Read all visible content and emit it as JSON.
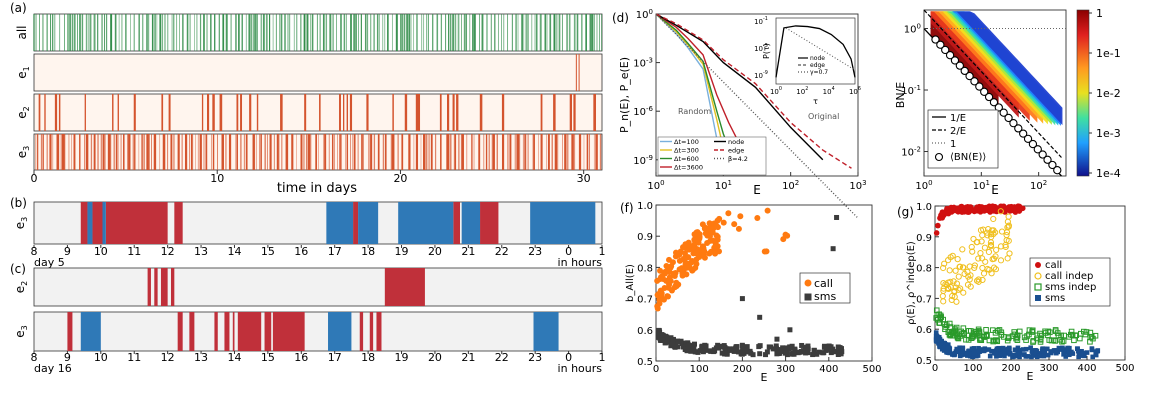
{
  "panel_labels": {
    "a": "(a)",
    "b": "(b)",
    "c": "(c)",
    "d": "(d)",
    "f": "(f)",
    "g": "(g)"
  },
  "colors": {
    "all": "#2e8b46",
    "event": "#d4542e",
    "bg_light": "#fff5ee",
    "call": "#c0303a",
    "sms": "#2f79b7",
    "gray_bg": "#f2f2f2"
  },
  "chart_data": [
    {
      "id": "a",
      "type": "heatmap",
      "row_labels": [
        "all",
        "e1",
        "e2",
        "e3"
      ],
      "xlabel": "time in days",
      "xticks": [
        0,
        10,
        20,
        30
      ],
      "xlim": [
        0,
        31
      ],
      "events": {
        "e1": [
          29.6,
          29.75
        ],
        "e2": [
          0.3,
          0.6,
          1.2,
          1.4,
          2.8,
          4.3,
          4.6,
          5.5,
          7.0,
          7.4,
          9.2,
          9.5,
          9.8,
          10.2,
          11.1,
          11.3,
          11.8,
          12.2,
          13.5,
          14.8,
          15.6,
          16.7,
          16.9,
          17.1,
          17.3,
          18.2,
          19.6,
          20.3,
          20.9,
          21.0,
          22.2,
          22.6,
          22.9,
          23.1,
          24.4,
          25.6,
          27.7,
          28.4,
          29.3,
          29.5,
          30.6
        ],
        "e3": [
          0.2,
          0.5,
          0.9,
          1.3,
          1.6,
          2.2,
          2.5,
          2.9,
          3.3,
          3.8,
          4.1,
          4.5,
          4.9,
          5.2,
          5.5,
          5.9,
          6.2,
          6.6,
          7.1,
          7.5,
          7.9,
          8.3,
          8.6,
          9.1,
          9.4,
          9.8,
          10.3,
          10.7,
          11.1,
          11.6,
          12.0,
          12.4,
          12.9,
          13.3,
          13.8,
          14.1,
          14.6,
          15.0,
          15.4,
          15.9,
          16.3,
          16.7,
          17.1,
          17.5,
          17.9,
          18.4,
          18.8,
          19.2,
          19.6,
          20.1,
          20.5,
          20.9,
          21.3,
          21.7,
          22.2,
          22.6,
          23.0,
          23.4,
          23.9,
          24.3,
          24.7,
          25.1,
          25.6,
          26.0,
          26.4,
          26.8,
          27.3,
          27.7,
          28.1,
          28.5,
          29.0,
          29.4,
          29.8,
          30.2,
          30.7
        ]
      }
    },
    {
      "id": "b",
      "type": "heatmap",
      "row_labels": [
        "e3"
      ],
      "xticks": [
        "8",
        "9",
        "10",
        "11",
        "12",
        "13",
        "14",
        "15",
        "16",
        "17",
        "18",
        "19",
        "20",
        "21",
        "22",
        "23",
        "0",
        "1"
      ],
      "day_label": "day 5",
      "unit_label": "in hours",
      "xlim": [
        8,
        25
      ],
      "call_intervals": [
        [
          9.4,
          9.6
        ],
        [
          9.75,
          10.05
        ],
        [
          10.15,
          12.0
        ],
        [
          12.2,
          12.45
        ],
        [
          17.55,
          17.7
        ],
        [
          20.55,
          20.75
        ],
        [
          21.35,
          21.9
        ]
      ],
      "sms_intervals": [
        [
          9.6,
          9.75
        ],
        [
          10.05,
          10.15
        ],
        [
          16.75,
          17.55
        ],
        [
          17.7,
          18.3
        ],
        [
          18.9,
          20.55
        ],
        [
          20.8,
          21.35
        ],
        [
          22.85,
          24.8
        ]
      ]
    },
    {
      "id": "c",
      "type": "heatmap",
      "row_labels": [
        "e2",
        "e3"
      ],
      "xticks": [
        "8",
        "9",
        "10",
        "11",
        "12",
        "13",
        "14",
        "15",
        "16",
        "17",
        "18",
        "19",
        "20",
        "21",
        "22",
        "23",
        "0",
        "1"
      ],
      "day_label": "day 16",
      "unit_label": "in hours",
      "xlim": [
        8,
        25
      ],
      "e2_call_intervals": [
        [
          11.4,
          11.5
        ],
        [
          11.6,
          11.7
        ],
        [
          11.8,
          12.0
        ],
        [
          12.1,
          12.2
        ],
        [
          18.5,
          19.7
        ]
      ],
      "e3_call_intervals": [
        [
          9.0,
          9.15
        ],
        [
          12.3,
          12.45
        ],
        [
          12.65,
          12.8
        ],
        [
          13.4,
          13.5
        ],
        [
          13.7,
          13.85
        ],
        [
          13.95,
          14.0
        ],
        [
          14.1,
          14.8
        ],
        [
          14.9,
          15.1
        ],
        [
          15.15,
          16.1
        ],
        [
          17.75,
          17.85
        ],
        [
          18.05,
          18.15
        ],
        [
          18.25,
          18.4
        ]
      ],
      "e3_sms_intervals": [
        [
          9.4,
          10.0
        ],
        [
          16.8,
          17.5
        ],
        [
          22.95,
          23.7
        ]
      ]
    },
    {
      "id": "d",
      "type": "line",
      "ylabel": "P_n(E), P_e(E)",
      "xlabel": "E",
      "xlog": true,
      "ylog": true,
      "xlim": [
        1,
        1000
      ],
      "ylim": [
        1e-10,
        1
      ],
      "xticks": [
        "10^0",
        "10^1",
        "10^2",
        "10^3"
      ],
      "yticks": [
        "10^0",
        "10^-3",
        "10^-6",
        "10^-9"
      ],
      "annotations": [
        "Random",
        "Original"
      ],
      "legend": [
        "Δt=100",
        "Δt=300",
        "Δt=600",
        "Δt=3600",
        "node",
        "edge",
        "β=4.2"
      ],
      "series": [
        {
          "name": "Δt=100",
          "color": "#7ab0dc",
          "x": [
            1,
            2,
            3,
            5,
            8,
            10
          ],
          "y": [
            1,
            0.06,
            0.008,
            0.0004,
            2e-08,
            5e-10
          ]
        },
        {
          "name": "Δt=300",
          "color": "#e0c020",
          "x": [
            1,
            2,
            3,
            5,
            8,
            10,
            12
          ],
          "y": [
            1,
            0.08,
            0.012,
            0.0008,
            3e-07,
            5e-09,
            5e-10
          ]
        },
        {
          "name": "Δt=600",
          "color": "#2b8a2b",
          "x": [
            1,
            2,
            3,
            5,
            8,
            10,
            15
          ],
          "y": [
            1,
            0.1,
            0.015,
            0.0012,
            1e-06,
            4e-08,
            5e-10
          ]
        },
        {
          "name": "Δt=3600",
          "color": "#c0202a",
          "x": [
            1,
            2,
            3,
            5,
            8,
            12,
            20
          ],
          "y": [
            1,
            0.15,
            0.03,
            0.003,
            1e-05,
            2e-07,
            3e-09
          ]
        },
        {
          "name": "node",
          "color": "#000000",
          "dash": "none",
          "x": [
            1,
            2,
            5,
            10,
            30,
            100,
            300
          ],
          "y": [
            1,
            0.2,
            0.02,
            0.001,
            3e-05,
            1e-07,
            1e-09
          ]
        },
        {
          "name": "edge",
          "color": "#c0202a",
          "dash": "5,3",
          "x": [
            1,
            2,
            5,
            10,
            30,
            100,
            300,
            800
          ],
          "y": [
            1,
            0.25,
            0.025,
            0.0015,
            5e-05,
            2e-07,
            4e-09,
            3e-10
          ]
        },
        {
          "name": "β=4.2",
          "color": "#555555",
          "dash": "1,2",
          "x": [
            1,
            1000
          ],
          "y": [
            1,
            2.5e-13
          ]
        }
      ],
      "inset": {
        "ylabel": "P(τ)",
        "xlabel": "τ",
        "xticks": [
          "10^0",
          "10^2",
          "10^4",
          "10^6"
        ],
        "yticks": [
          "10^-1",
          "10^-5",
          "10^-9"
        ],
        "legend": [
          "node",
          "edge",
          "γ=0.7"
        ]
      }
    },
    {
      "id": "e",
      "type": "scatter",
      "ylabel": "BN/E",
      "xlabel": "E",
      "xlog": true,
      "ylog": true,
      "xlim": [
        1,
        300
      ],
      "ylim": [
        0.004,
        2
      ],
      "xticks": [
        "10^0",
        "10^1",
        "10^2"
      ],
      "yticks": [
        "10^0",
        "10^-1",
        "10^-2"
      ],
      "legend": [
        "1/E",
        "2/E",
        "1",
        "⟨BN(E)⟩"
      ],
      "colorbar": {
        "ticks": [
          "1",
          "1e-1",
          "1e-2",
          "1e-3",
          "1e-4"
        ]
      }
    },
    {
      "id": "f",
      "type": "scatter",
      "ylabel": "b_All(E)",
      "xlabel": "E",
      "xlim": [
        0,
        500
      ],
      "ylim": [
        0.5,
        1.0
      ],
      "xticks": [
        "0",
        "100",
        "200",
        "300",
        "400",
        "500"
      ],
      "yticks": [
        "0.5",
        "0.6",
        "0.7",
        "0.8",
        "0.9",
        "1.0"
      ],
      "legend": [
        "call",
        "sms"
      ]
    },
    {
      "id": "g",
      "type": "scatter",
      "ylabel": "ρ(E), ρ^indep(E)",
      "xlabel": "E",
      "xlim": [
        0,
        500
      ],
      "ylim": [
        0.5,
        1.0
      ],
      "xticks": [
        "0",
        "100",
        "200",
        "300",
        "400",
        "500"
      ],
      "yticks": [
        "0.5",
        "0.6",
        "0.7",
        "0.8",
        "0.9",
        "1.0"
      ],
      "legend": [
        "call",
        "call indep",
        "sms indep",
        "sms"
      ]
    }
  ]
}
